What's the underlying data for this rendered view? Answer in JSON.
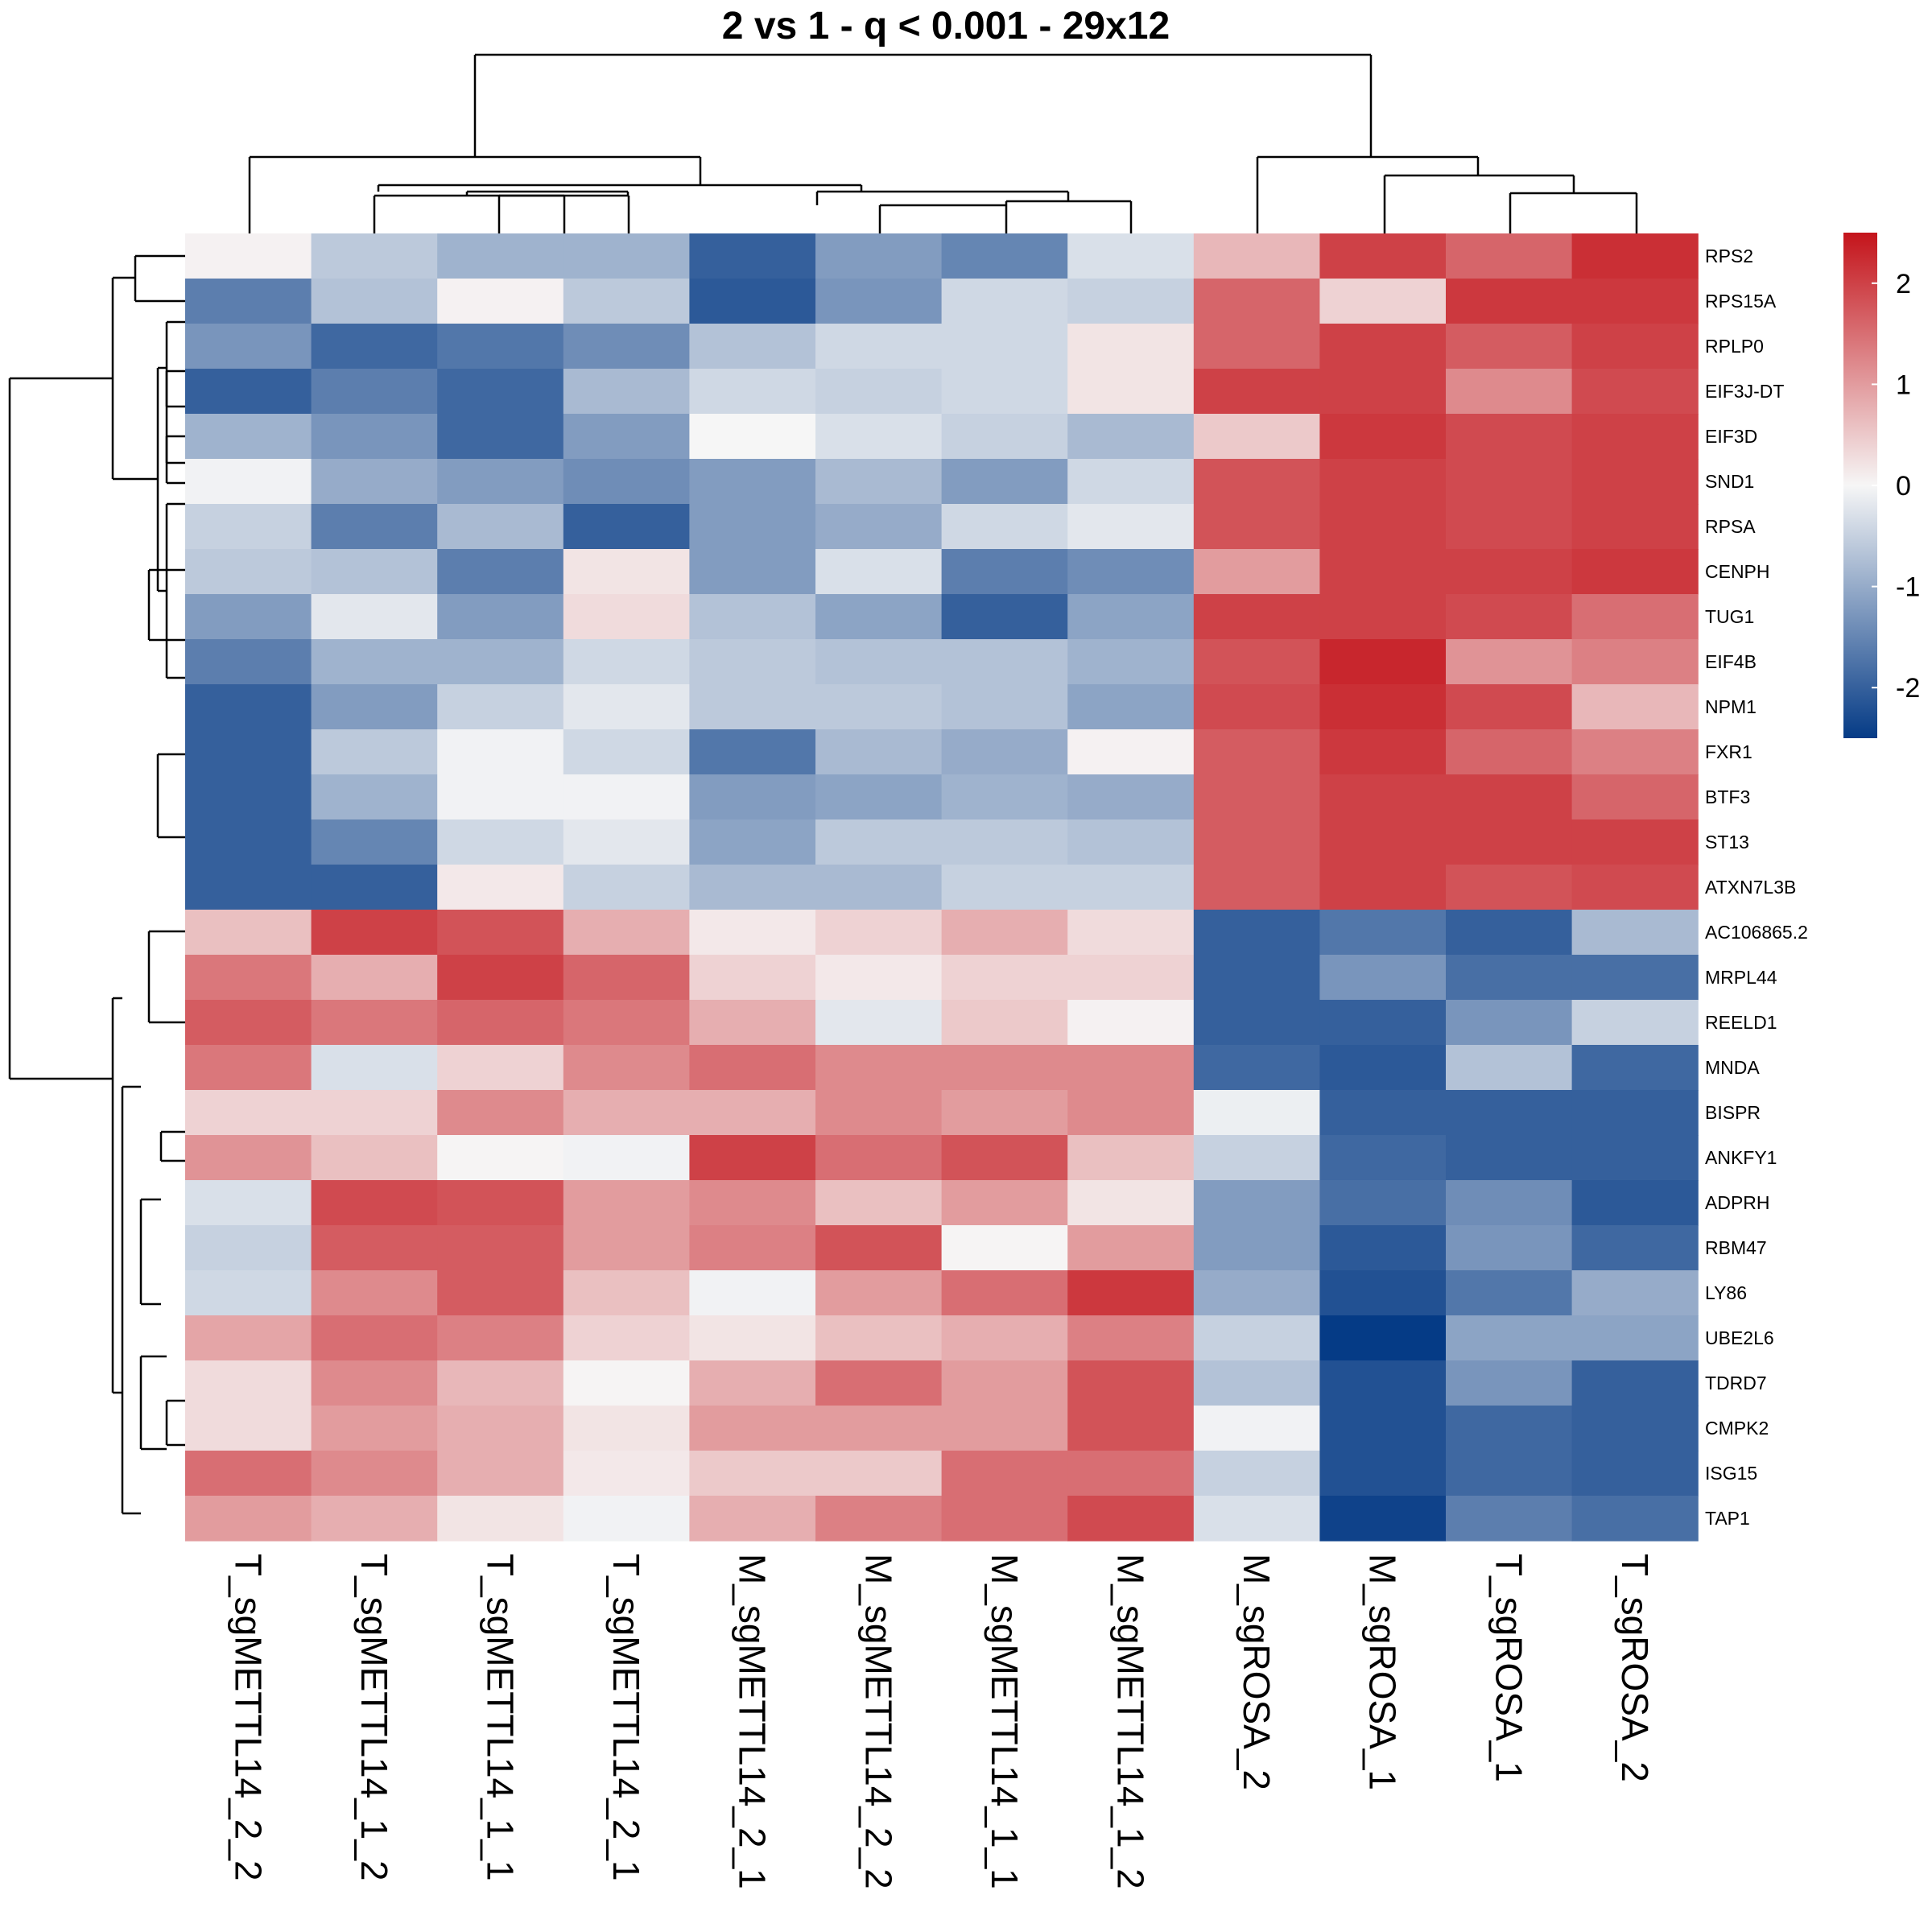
{
  "chart_data": {
    "type": "heatmap",
    "title": "2 vs 1 - q < 0.001 - 29x12",
    "columns": [
      "T_sgMETTL14_2_2",
      "T_sgMETTL14_1_2",
      "T_sgMETTL14_1_1",
      "T_sgMETTL14_2_1",
      "M_sgMETTL14_2_1",
      "M_sgMETTL14_2_2",
      "M_sgMETTL14_1_1",
      "M_sgMETTL14_1_2",
      "M_sgROSA_2",
      "M_sgROSA_1",
      "T_sgROSA_1",
      "T_sgROSA_2"
    ],
    "rows": [
      "RPS2",
      "RPS15A",
      "RPLP0",
      "EIF3J-DT",
      "EIF3D",
      "SND1",
      "RPSA",
      "CENPH",
      "TUG1",
      "EIF4B",
      "NPM1",
      "FXR1",
      "BTF3",
      "ST13",
      "ATXN7L3B",
      "AC106865.2",
      "MRPL44",
      "REELD1",
      "MNDA",
      "BISPR",
      "ANKFY1",
      "ADPRH",
      "RBM47",
      "LY86",
      "UBE2L6",
      "TDRD7",
      "CMPK2",
      "ISG15",
      "TAP1"
    ],
    "values": [
      [
        0.05,
        -0.6,
        -0.9,
        -0.9,
        -2.0,
        -1.2,
        -1.5,
        -0.3,
        0.7,
        2.0,
        1.6,
        2.2
      ],
      [
        -1.6,
        -0.7,
        0.05,
        -0.6,
        -2.1,
        -1.3,
        -0.4,
        -0.5,
        1.6,
        0.4,
        2.1,
        2.1
      ],
      [
        -1.3,
        -1.9,
        -1.7,
        -1.4,
        -0.7,
        -0.4,
        -0.4,
        0.2,
        1.6,
        2.0,
        1.7,
        2.0
      ],
      [
        -2.0,
        -1.6,
        -1.9,
        -0.8,
        -0.4,
        -0.5,
        -0.4,
        0.2,
        2.0,
        2.0,
        1.2,
        1.9
      ],
      [
        -0.9,
        -1.3,
        -1.9,
        -1.2,
        0.0,
        -0.3,
        -0.5,
        -0.8,
        0.5,
        2.1,
        1.9,
        2.0
      ],
      [
        -0.05,
        -1.0,
        -1.2,
        -1.4,
        -1.2,
        -0.8,
        -1.2,
        -0.4,
        1.8,
        2.0,
        1.9,
        2.0
      ],
      [
        -0.5,
        -1.6,
        -0.8,
        -2.0,
        -1.2,
        -1.0,
        -0.4,
        -0.2,
        1.8,
        2.0,
        1.9,
        2.0
      ],
      [
        -0.6,
        -0.7,
        -1.6,
        0.2,
        -1.2,
        -0.3,
        -1.6,
        -1.4,
        1.0,
        2.0,
        2.0,
        2.1
      ],
      [
        -1.2,
        -0.2,
        -1.2,
        0.3,
        -0.7,
        -1.1,
        -2.0,
        -1.1,
        2.0,
        2.0,
        1.9,
        1.5
      ],
      [
        -1.6,
        -0.9,
        -0.9,
        -0.4,
        -0.6,
        -0.7,
        -0.7,
        -0.9,
        1.8,
        2.3,
        1.1,
        1.3
      ],
      [
        -2.0,
        -1.2,
        -0.5,
        -0.2,
        -0.6,
        -0.6,
        -0.7,
        -1.1,
        1.9,
        2.2,
        1.9,
        0.7
      ],
      [
        -2.0,
        -0.6,
        -0.05,
        -0.4,
        -1.7,
        -0.8,
        -1.0,
        0.05,
        1.7,
        2.1,
        1.6,
        1.3
      ],
      [
        -2.0,
        -0.9,
        -0.05,
        -0.05,
        -1.2,
        -1.1,
        -0.9,
        -1.0,
        1.7,
        2.0,
        2.0,
        1.6
      ],
      [
        -2.0,
        -1.5,
        -0.4,
        -0.2,
        -1.1,
        -0.6,
        -0.6,
        -0.7,
        1.7,
        2.0,
        2.0,
        2.0
      ],
      [
        -2.0,
        -2.0,
        0.15,
        -0.5,
        -0.8,
        -0.8,
        -0.5,
        -0.5,
        1.7,
        2.0,
        1.8,
        1.9
      ],
      [
        0.6,
        2.0,
        1.8,
        0.8,
        0.15,
        0.4,
        0.8,
        0.3,
        -2.0,
        -1.7,
        -2.0,
        -0.8
      ],
      [
        1.4,
        0.8,
        2.0,
        1.6,
        0.4,
        0.15,
        0.4,
        0.4,
        -2.0,
        -1.3,
        -1.8,
        -1.8
      ],
      [
        1.7,
        1.4,
        1.6,
        1.4,
        0.8,
        -0.2,
        0.5,
        0.05,
        -2.0,
        -2.0,
        -1.3,
        -0.5
      ],
      [
        1.4,
        -0.3,
        0.4,
        1.2,
        1.5,
        1.2,
        1.2,
        1.2,
        -1.9,
        -2.1,
        -0.7,
        -1.9
      ],
      [
        0.4,
        0.4,
        1.2,
        0.8,
        0.8,
        1.2,
        1.0,
        1.2,
        -0.1,
        -2.0,
        -2.0,
        -2.0
      ],
      [
        1.1,
        0.6,
        0.02,
        -0.05,
        2.0,
        1.5,
        1.8,
        0.6,
        -0.5,
        -1.9,
        -2.0,
        -2.0
      ],
      [
        -0.3,
        1.9,
        1.8,
        1.0,
        1.2,
        0.6,
        1.0,
        0.2,
        -1.2,
        -1.8,
        -1.4,
        -2.1
      ],
      [
        -0.5,
        1.7,
        1.7,
        1.0,
        1.3,
        1.8,
        0.02,
        1.0,
        -1.2,
        -2.1,
        -1.3,
        -1.9
      ],
      [
        -0.4,
        1.2,
        1.7,
        0.6,
        -0.05,
        1.0,
        1.5,
        2.1,
        -1.0,
        -2.2,
        -1.7,
        -1.0
      ],
      [
        0.9,
        1.5,
        1.3,
        0.4,
        0.2,
        0.6,
        0.8,
        1.3,
        -0.5,
        -2.6,
        -1.1,
        -1.1
      ],
      [
        0.3,
        1.2,
        0.7,
        0.02,
        0.8,
        1.5,
        1.0,
        1.8,
        -0.7,
        -2.2,
        -1.3,
        -2.0
      ],
      [
        0.3,
        1.0,
        0.8,
        0.2,
        1.0,
        1.0,
        1.0,
        1.8,
        -0.05,
        -2.2,
        -1.9,
        -2.0
      ],
      [
        1.5,
        1.2,
        0.8,
        0.15,
        0.5,
        0.5,
        1.5,
        1.5,
        -0.5,
        -2.2,
        -1.9,
        -2.0
      ],
      [
        1.0,
        0.8,
        0.2,
        -0.05,
        0.8,
        1.3,
        1.5,
        1.9,
        -0.3,
        -2.4,
        -1.6,
        -1.8
      ]
    ],
    "color_scale": {
      "min": -2.5,
      "max": 2.5,
      "low": "#053b86",
      "mid": "#f6f6f6",
      "high": "#c4141b"
    },
    "legend_ticks": [
      2,
      1,
      0,
      -1,
      -2
    ],
    "legend_tick_labels": [
      "2",
      "1",
      "0",
      "-1",
      "-2"
    ],
    "legend_position": "right"
  }
}
